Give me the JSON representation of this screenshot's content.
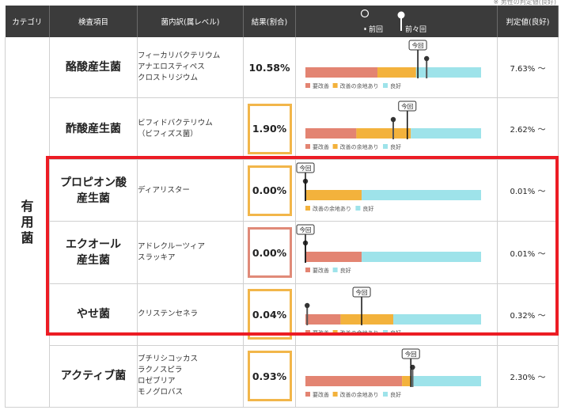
{
  "top_note": "※ 男性の判定値(良好)",
  "headers": {
    "category": "カテゴリ",
    "item": "検査項目",
    "genus": "菌内訳(属レベル)",
    "result": "結果(割合)",
    "graph_prev": "前回",
    "graph_prev2": "前々回",
    "reference": "判定値(良好)"
  },
  "category_label": "有用菌",
  "legend": {
    "bad": "要改善",
    "mid": "改善の余地あり",
    "good": "良好"
  },
  "marker_label": "今回",
  "colors": {
    "bad": "#e38472",
    "mid": "#f3b23c",
    "good": "#9ee3ea",
    "highlight": "#ec1c24",
    "header_bg": "#3b3b3b"
  },
  "rows": [
    {
      "item_lines": [
        "酪酸産生菌"
      ],
      "genus_lines": [
        "フィーカリバクテリウム",
        "アナエロスティペス",
        "クロストリジウム"
      ],
      "result": "10.58%",
      "result_box": "plain",
      "reference": "7.63% 〜",
      "bar": {
        "bad": 0.41,
        "mid": 0.22,
        "good": 0.37
      },
      "marker_now": 0.64,
      "marker_prev": 0.69,
      "legend": [
        "bad",
        "mid",
        "good"
      ]
    },
    {
      "item_lines": [
        "酢酸産生菌"
      ],
      "genus_lines": [
        "ビフィドバクテリウム",
        "（ビフィズス菌）"
      ],
      "result": "1.90%",
      "result_box": "orange",
      "reference": "2.62% 〜",
      "bar": {
        "bad": 0.29,
        "mid": 0.31,
        "good": 0.4
      },
      "marker_now": 0.58,
      "marker_prev": 0.5,
      "legend": [
        "bad",
        "mid",
        "good"
      ]
    },
    {
      "item_lines": [
        "プロピオン酸",
        "産生菌"
      ],
      "genus_lines": [
        "ディアリスター"
      ],
      "result": "0.00%",
      "result_box": "orange",
      "reference": "0.01% 〜",
      "bar": {
        "bad": 0.0,
        "mid": 0.32,
        "good": 0.68
      },
      "marker_now": 0.0,
      "marker_prev": 0.0,
      "legend": [
        "mid",
        "good"
      ]
    },
    {
      "item_lines": [
        "エクオール",
        "産生菌"
      ],
      "genus_lines": [
        "アドレクルーツィア",
        "スラッキア"
      ],
      "result": "0.00%",
      "result_box": "red",
      "reference": "0.01% 〜",
      "bar": {
        "bad": 0.32,
        "mid": 0.0,
        "good": 0.68
      },
      "marker_now": 0.0,
      "marker_prev": 0.0,
      "legend": [
        "bad",
        "good"
      ]
    },
    {
      "item_lines": [
        "やせ菌"
      ],
      "genus_lines": [
        "クリステンセネラ"
      ],
      "result": "0.04%",
      "result_box": "orange",
      "reference": "0.32% 〜",
      "bar": {
        "bad": 0.2,
        "mid": 0.3,
        "good": 0.5
      },
      "marker_now": 0.32,
      "marker_prev": 0.01,
      "legend": [
        "bad",
        "mid",
        "good"
      ]
    },
    {
      "item_lines": [
        "アクティブ菌"
      ],
      "genus_lines": [
        "ブチリシコッカス",
        "ラクノスピラ",
        "ロゼブリア",
        "モノグロバス"
      ],
      "result": "0.93%",
      "result_box": "orange",
      "reference": "2.30% 〜",
      "bar": {
        "bad": 0.55,
        "mid": 0.05,
        "good": 0.4
      },
      "marker_now": 0.6,
      "marker_prev": 0.61,
      "legend": [
        "bad",
        "mid",
        "good"
      ]
    }
  ]
}
